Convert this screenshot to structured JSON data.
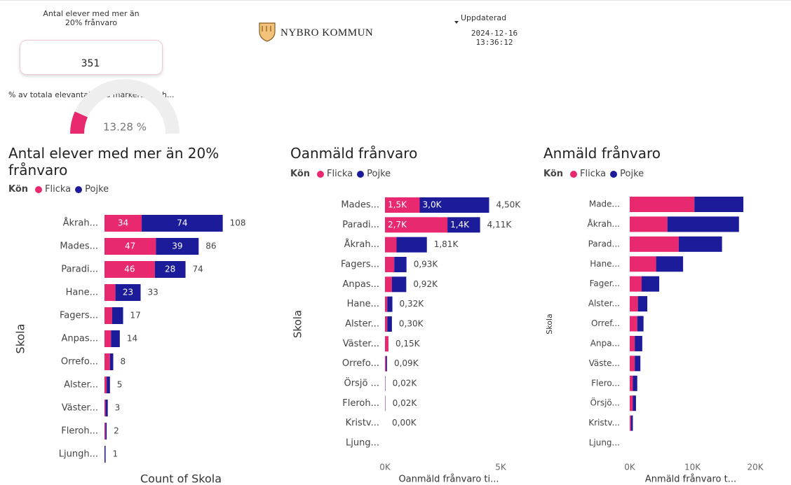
{
  "header": {
    "card_title": "Antal elever med mer än 20% frånvaro",
    "card_value": "351",
    "gauge_title": "% av totala elevantalet på markerad enh...",
    "gauge": {
      "value": 13.28,
      "label": "13.28 %",
      "range": [
        0,
        100
      ]
    },
    "logo_text": "NYBRO KOMMUN",
    "updated_label": "Uppdaterad",
    "updated_value": "2024-12-16 13:36:12"
  },
  "chart_data": [
    {
      "type": "stacked-bar-horizontal",
      "title": "Antal elever med mer än 20% frånvaro",
      "legend_title": "Kön",
      "x_label": "Count of Skola",
      "y_label": "Skola",
      "categories": [
        "Åkrah...",
        "Mades...",
        "Paradi...",
        "Hane...",
        "Fagers...",
        "Anpas...",
        "Orrefo...",
        "Alster...",
        "Väster...",
        "Fleroh...",
        "Ljungh..."
      ],
      "series": [
        {
          "name": "Flicka",
          "color": "#e8286f",
          "values": [
            34,
            47,
            46,
            10,
            7,
            6,
            5,
            2,
            1,
            1,
            0
          ]
        },
        {
          "name": "Pojke",
          "color": "#1c1c9a",
          "values": [
            74,
            39,
            28,
            23,
            10,
            8,
            3,
            3,
            2,
            1,
            1
          ]
        }
      ],
      "total_labels": [
        108,
        86,
        74,
        33,
        17,
        14,
        8,
        5,
        3,
        2,
        1
      ],
      "data_labels": true,
      "xlim": [
        0,
        130
      ]
    },
    {
      "type": "stacked-bar-horizontal",
      "title": "Oanmäld frånvaro",
      "legend_title": "Kön",
      "x_label": "Oanmäld frånvaro ti...",
      "y_label": "Skola",
      "categories": [
        "Mades...",
        "Paradi...",
        "Åkrah...",
        "Fagers...",
        "Anpas...",
        "Hane...",
        "Alster...",
        "Väster...",
        "Orrefo...",
        "Örsjö ...",
        "Fleroh...",
        "Kristv...",
        "Ljung..."
      ],
      "series": [
        {
          "name": "Flicka",
          "color": "#e8286f",
          "values": [
            1500,
            2700,
            500,
            400,
            300,
            100,
            100,
            150,
            50,
            10,
            10,
            0,
            null
          ],
          "value_labels": [
            "1,5K",
            "2,7K",
            null,
            null,
            null,
            null,
            null,
            null,
            null,
            null,
            null,
            null,
            null
          ]
        },
        {
          "name": "Pojke",
          "color": "#1c1c9a",
          "values": [
            3000,
            1410,
            1310,
            530,
            620,
            220,
            200,
            0,
            40,
            10,
            10,
            0,
            null
          ],
          "value_labels": [
            "3,0K",
            "1,4K",
            null,
            null,
            null,
            null,
            null,
            null,
            null,
            null,
            null,
            null,
            null
          ]
        }
      ],
      "total_labels": [
        "4,50K",
        "4,11K",
        "1,81K",
        "0,93K",
        "0,92K",
        "0,32K",
        "0,30K",
        "0,15K",
        "0,09K",
        "0,02K",
        "0,02K",
        "0,00K",
        null
      ],
      "data_labels": true,
      "xlim": [
        0,
        6000
      ],
      "xticks": [
        {
          "value": 0,
          "label": "0K"
        },
        {
          "value": 5000,
          "label": "5K"
        }
      ]
    },
    {
      "type": "stacked-bar-horizontal",
      "title": "Anmäld frånvaro",
      "legend_title": "Kön",
      "x_label": "Anmäld frånvaro t...",
      "y_label": "Skola",
      "categories": [
        "Made...",
        "Åkrah...",
        "Parad...",
        "Hane...",
        "Fager...",
        "Alster...",
        "Orref...",
        "Anpa...",
        "Väste...",
        "Flero...",
        "Örsjö...",
        "Kristv...",
        "Ljung..."
      ],
      "series": [
        {
          "name": "Flicka",
          "color": "#e8286f",
          "values": [
            10300,
            6000,
            7800,
            4200,
            1900,
            1300,
            1200,
            800,
            800,
            500,
            500,
            200,
            null
          ]
        },
        {
          "name": "Pojke",
          "color": "#1c1c9a",
          "values": [
            7800,
            11400,
            6900,
            4300,
            2800,
            1500,
            1000,
            1200,
            900,
            700,
            500,
            300,
            null
          ]
        }
      ],
      "data_labels": false,
      "xlim": [
        0,
        22000
      ],
      "xticks": [
        {
          "value": 0,
          "label": "0K"
        },
        {
          "value": 10000,
          "label": "10K"
        },
        {
          "value": 20000,
          "label": "20K"
        }
      ]
    }
  ]
}
